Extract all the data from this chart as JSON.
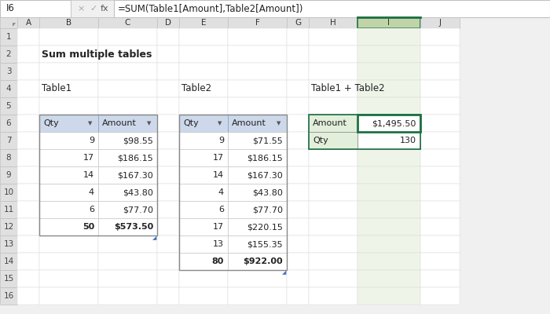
{
  "title": "Sum multiple tables",
  "formula_bar_cell": "I6",
  "formula_bar_text": "=SUM(Table1[Amount],Table2[Amount])",
  "table1_label": "Table1",
  "table2_label": "Table2",
  "table3_label": "Table1 + Table2",
  "table1_qty": [
    9,
    17,
    14,
    4,
    6,
    50
  ],
  "table1_amount": [
    "$98.55",
    "$186.15",
    "$167.30",
    "$43.80",
    "$77.70",
    "$573.50"
  ],
  "table2_qty": [
    9,
    17,
    14,
    4,
    6,
    17,
    13,
    80
  ],
  "table2_amount": [
    "$71.55",
    "$186.15",
    "$167.30",
    "$43.80",
    "$77.70",
    "$220.15",
    "$155.35",
    "$922.00"
  ],
  "summary_labels": [
    "Amount",
    "Qty"
  ],
  "summary_values": [
    "$1,495.50",
    "130"
  ],
  "bg_color": "#f0f0f0",
  "header_bg": "#cdd9ea",
  "cell_bg": "#ffffff",
  "cell_alt_bg": "#f5f5f5",
  "selected_cell_border": "#1e7145",
  "summary_label_bg": "#e2efda",
  "formula_bar_bg": "#ffffff",
  "col_header_bg": "#e0e0e0",
  "col_header_selected_bg": "#c0d4a8",
  "row_header_bg": "#e0e0e0",
  "col_names": [
    "A",
    "B",
    "C",
    "D",
    "E",
    "F",
    "G",
    "H",
    "I",
    "J"
  ],
  "n_rows": 16
}
